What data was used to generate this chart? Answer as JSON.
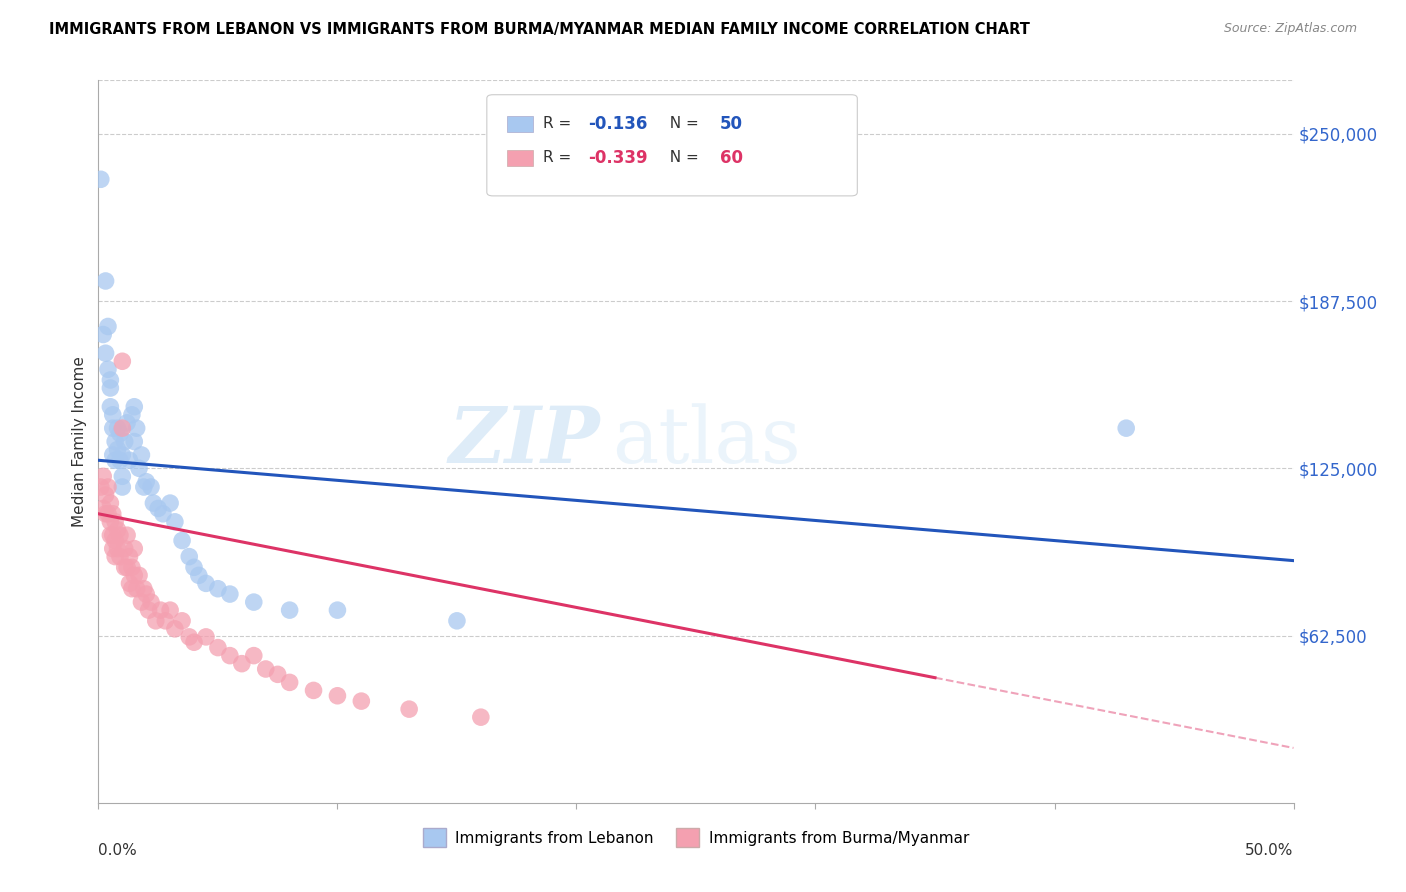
{
  "title": "IMMIGRANTS FROM LEBANON VS IMMIGRANTS FROM BURMA/MYANMAR MEDIAN FAMILY INCOME CORRELATION CHART",
  "source": "Source: ZipAtlas.com",
  "ylabel": "Median Family Income",
  "ytick_labels": [
    "$62,500",
    "$125,000",
    "$187,500",
    "$250,000"
  ],
  "ytick_values": [
    62500,
    125000,
    187500,
    250000
  ],
  "ylim": [
    0,
    270000
  ],
  "xlim": [
    0.0,
    0.5
  ],
  "legend_label1": "Immigrants from Lebanon",
  "legend_label2": "Immigrants from Burma/Myanmar",
  "r1": -0.136,
  "n1": 50,
  "r2": -0.339,
  "n2": 60,
  "color_lebanon": "#a8c8f0",
  "color_burma": "#f4a0b0",
  "color_line_lebanon": "#2255bb",
  "color_line_burma": "#dd3366",
  "watermark_zip": "ZIP",
  "watermark_atlas": "atlas",
  "lebanon_x": [
    0.001,
    0.002,
    0.003,
    0.003,
    0.004,
    0.004,
    0.005,
    0.005,
    0.005,
    0.006,
    0.006,
    0.006,
    0.007,
    0.007,
    0.008,
    0.008,
    0.009,
    0.009,
    0.01,
    0.01,
    0.01,
    0.011,
    0.012,
    0.013,
    0.014,
    0.015,
    0.015,
    0.016,
    0.017,
    0.018,
    0.019,
    0.02,
    0.022,
    0.023,
    0.025,
    0.027,
    0.03,
    0.032,
    0.035,
    0.038,
    0.04,
    0.042,
    0.045,
    0.05,
    0.055,
    0.065,
    0.08,
    0.1,
    0.15,
    0.43
  ],
  "lebanon_y": [
    233000,
    175000,
    195000,
    168000,
    162000,
    178000,
    158000,
    148000,
    155000,
    140000,
    130000,
    145000,
    135000,
    128000,
    140000,
    132000,
    138000,
    128000,
    130000,
    122000,
    118000,
    135000,
    142000,
    128000,
    145000,
    135000,
    148000,
    140000,
    125000,
    130000,
    118000,
    120000,
    118000,
    112000,
    110000,
    108000,
    112000,
    105000,
    98000,
    92000,
    88000,
    85000,
    82000,
    80000,
    78000,
    75000,
    72000,
    72000,
    68000,
    140000
  ],
  "burma_x": [
    0.001,
    0.002,
    0.002,
    0.003,
    0.003,
    0.004,
    0.004,
    0.005,
    0.005,
    0.005,
    0.006,
    0.006,
    0.006,
    0.007,
    0.007,
    0.007,
    0.008,
    0.008,
    0.009,
    0.009,
    0.01,
    0.01,
    0.011,
    0.011,
    0.012,
    0.012,
    0.013,
    0.013,
    0.014,
    0.014,
    0.015,
    0.015,
    0.016,
    0.017,
    0.018,
    0.019,
    0.02,
    0.021,
    0.022,
    0.024,
    0.026,
    0.028,
    0.03,
    0.032,
    0.035,
    0.038,
    0.04,
    0.045,
    0.05,
    0.055,
    0.06,
    0.065,
    0.07,
    0.075,
    0.08,
    0.09,
    0.1,
    0.11,
    0.13,
    0.16
  ],
  "burma_y": [
    118000,
    122000,
    110000,
    115000,
    108000,
    118000,
    108000,
    112000,
    105000,
    100000,
    108000,
    100000,
    95000,
    105000,
    98000,
    92000,
    102000,
    95000,
    100000,
    92000,
    165000,
    140000,
    95000,
    88000,
    100000,
    88000,
    92000,
    82000,
    88000,
    80000,
    95000,
    85000,
    80000,
    85000,
    75000,
    80000,
    78000,
    72000,
    75000,
    68000,
    72000,
    68000,
    72000,
    65000,
    68000,
    62000,
    60000,
    62000,
    58000,
    55000,
    52000,
    55000,
    50000,
    48000,
    45000,
    42000,
    40000,
    38000,
    35000,
    32000
  ]
}
